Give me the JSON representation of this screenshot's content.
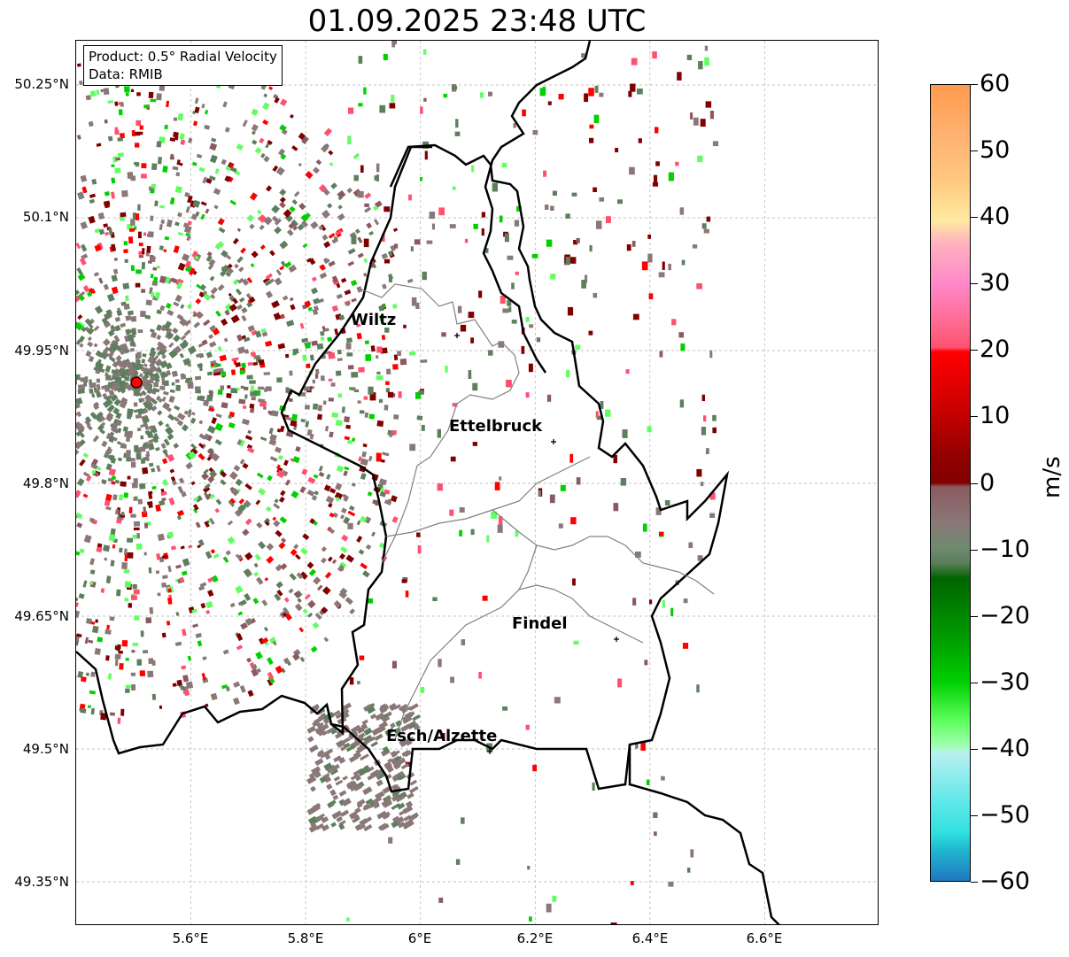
{
  "title": "01.09.2025 23:48 UTC",
  "info": {
    "product": "Product: 0.5° Radial Velocity",
    "data": "Data: RMIB"
  },
  "lat_labels": [
    "50.25°N",
    "50.1°N",
    "49.95°N",
    "49.8°N",
    "49.65°N",
    "49.5°N",
    "49.35°N"
  ],
  "lon_labels": [
    "5.6°E",
    "5.8°E",
    "6°E",
    "6.2°E",
    "6.4°E",
    "6.6°E"
  ],
  "cities": [
    {
      "name": "Wiltz"
    },
    {
      "name": "Ettelbruck"
    },
    {
      "name": "Findel"
    },
    {
      "name": "Esch/Alzette"
    }
  ],
  "radar_site": {
    "lon": 5.505,
    "lat": 49.914
  },
  "colorbar": {
    "label": "m/s",
    "ticks": [
      "60",
      "50",
      "40",
      "30",
      "20",
      "10",
      "0",
      "−10",
      "−20",
      "−30",
      "−40",
      "−50",
      "−60"
    ],
    "min": -60,
    "max": 60,
    "colors": {
      "orange": "#ff9a4d",
      "peach": "#ffc880",
      "light_yellow": "#ffe9a0",
      "pink": "#ff88c8",
      "rose": "#ff5070",
      "red": "#ff0000",
      "dark_red": "#800000",
      "maroon_gray": "#8a5a60",
      "gray": "#8a7878",
      "gray_green": "#5d7f5d",
      "dark_green": "#006400",
      "green": "#00d000",
      "light_green": "#60ff60",
      "pale_cyan": "#b8f0f0",
      "cyan": "#30e0e0",
      "blue": "#1f78c0"
    }
  },
  "map_extent": {
    "lon_min": 5.4,
    "lon_max": 6.8,
    "lat_min": 49.3,
    "lat_max": 50.3
  }
}
